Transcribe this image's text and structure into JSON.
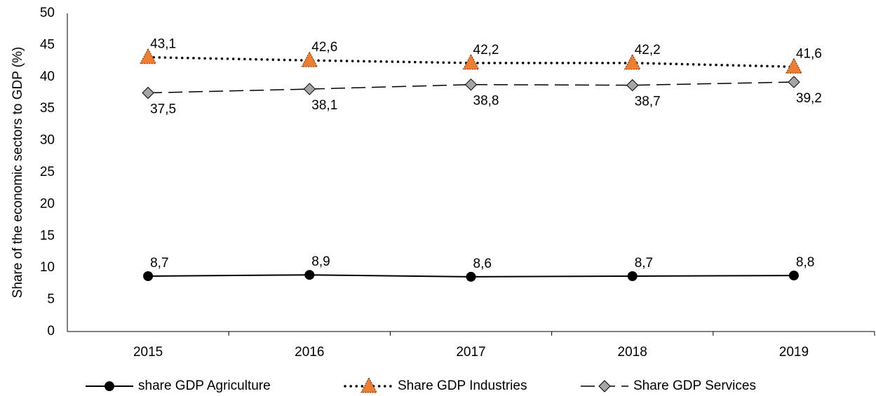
{
  "chart_data": {
    "type": "line",
    "y_label": "Share of the economic sectors to GDP (%)",
    "categories": [
      "2015",
      "2016",
      "2017",
      "2018",
      "2019"
    ],
    "ylim": [
      0,
      50
    ],
    "yticks": [
      0,
      5,
      10,
      15,
      20,
      25,
      30,
      35,
      40,
      45,
      50
    ],
    "grid": false,
    "legend": "bottom",
    "series": [
      {
        "name": "share GDP Agriculture",
        "color": "#000000",
        "line_style": "solid",
        "marker": "circle",
        "label_position": "above",
        "values": [
          8.7,
          8.9,
          8.6,
          8.7,
          8.8
        ],
        "value_labels": [
          "8,7",
          "8,9",
          "8,6",
          "8,7",
          "8,8"
        ]
      },
      {
        "name": "Share GDP Industries",
        "color": "#ed7d31",
        "line_style": "dotted",
        "marker": "triangle",
        "label_position": "above",
        "values": [
          43.1,
          42.6,
          42.2,
          42.2,
          41.6
        ],
        "value_labels": [
          "43,1",
          "42,6",
          "42,2",
          "42,2",
          "41,6"
        ]
      },
      {
        "name": "Share GDP Services",
        "color": "#a5a5a5",
        "line_style": "dashed",
        "marker": "diamond",
        "label_position": "below",
        "values": [
          37.5,
          38.1,
          38.8,
          38.7,
          39.2
        ],
        "value_labels": [
          "37,5",
          "38,1",
          "38,8",
          "38,7",
          "39,2"
        ]
      }
    ]
  }
}
